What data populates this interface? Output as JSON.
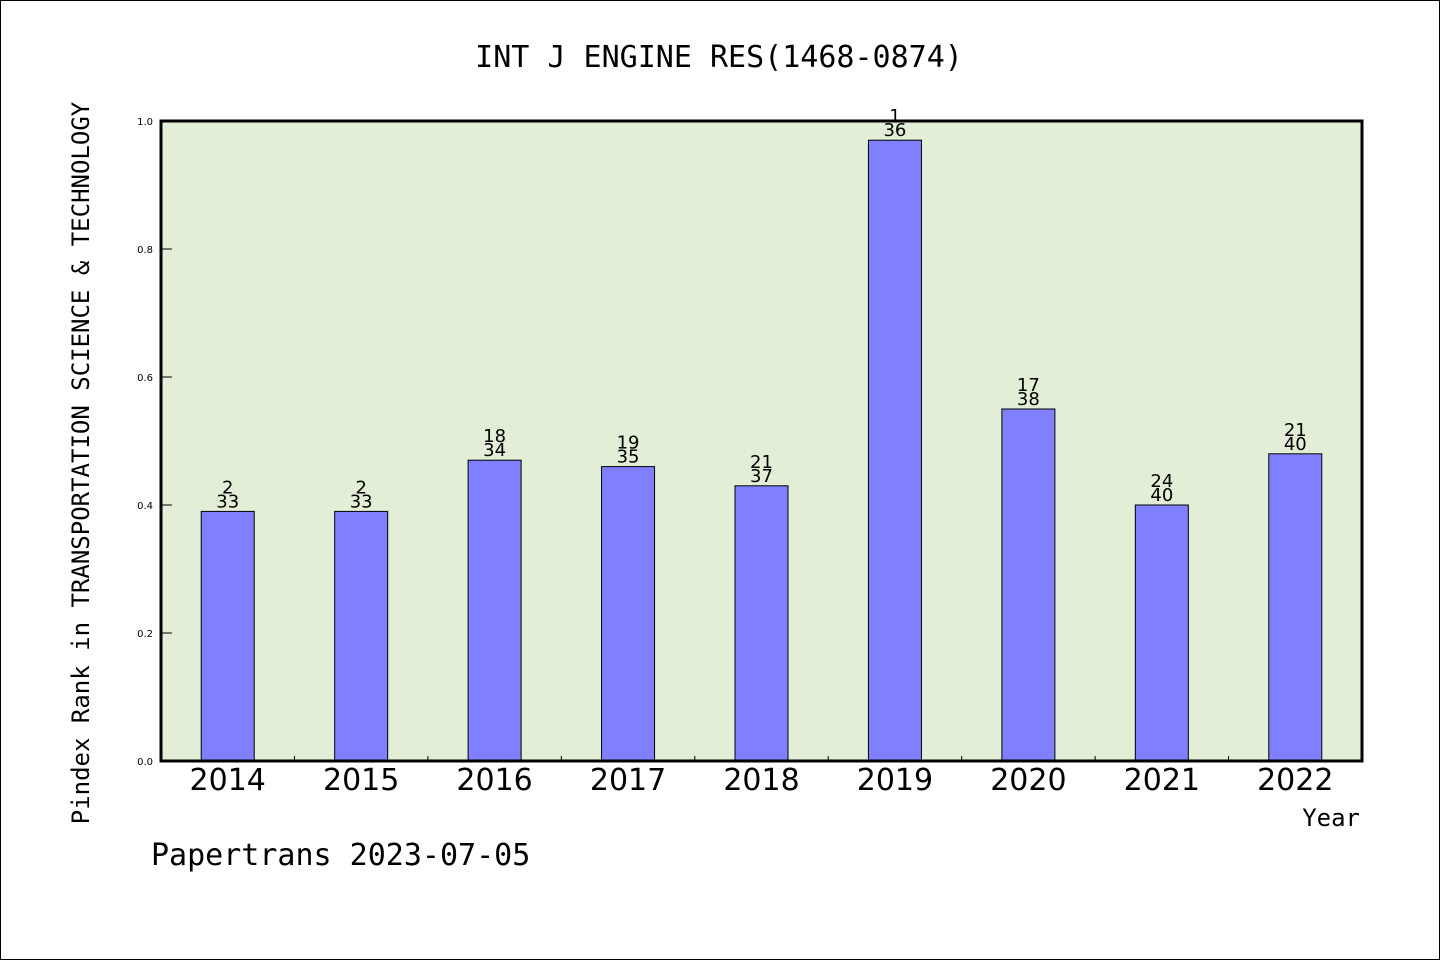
{
  "chart_data": {
    "type": "bar",
    "title": "INT J ENGINE RES(1468-0874)",
    "xlabel": "Year",
    "ylabel": "Pindex Rank in TRANSPORTATION SCIENCE & TECHNOLOGY",
    "ylim": [
      0,
      1.0
    ],
    "y_ticks": [
      "0.0",
      "0.2",
      "0.4",
      "0.6",
      "0.8",
      "1.0"
    ],
    "grid": false,
    "categories": [
      "2014",
      "2015",
      "2016",
      "2017",
      "2018",
      "2019",
      "2020",
      "2021",
      "2022"
    ],
    "values": [
      0.39,
      0.39,
      0.47,
      0.46,
      0.43,
      0.97,
      0.55,
      0.4,
      0.48
    ],
    "rank_labels": [
      "2",
      "2",
      "18",
      "19",
      "21",
      "1",
      "17",
      "24",
      "21"
    ],
    "total_labels": [
      "33",
      "33",
      "34",
      "35",
      "37",
      "36",
      "38",
      "40",
      "40"
    ],
    "bar_color": "#8080ff",
    "plot_background": "#e2efd6"
  },
  "footer": {
    "text": "Papertrans 2023-07-05"
  }
}
